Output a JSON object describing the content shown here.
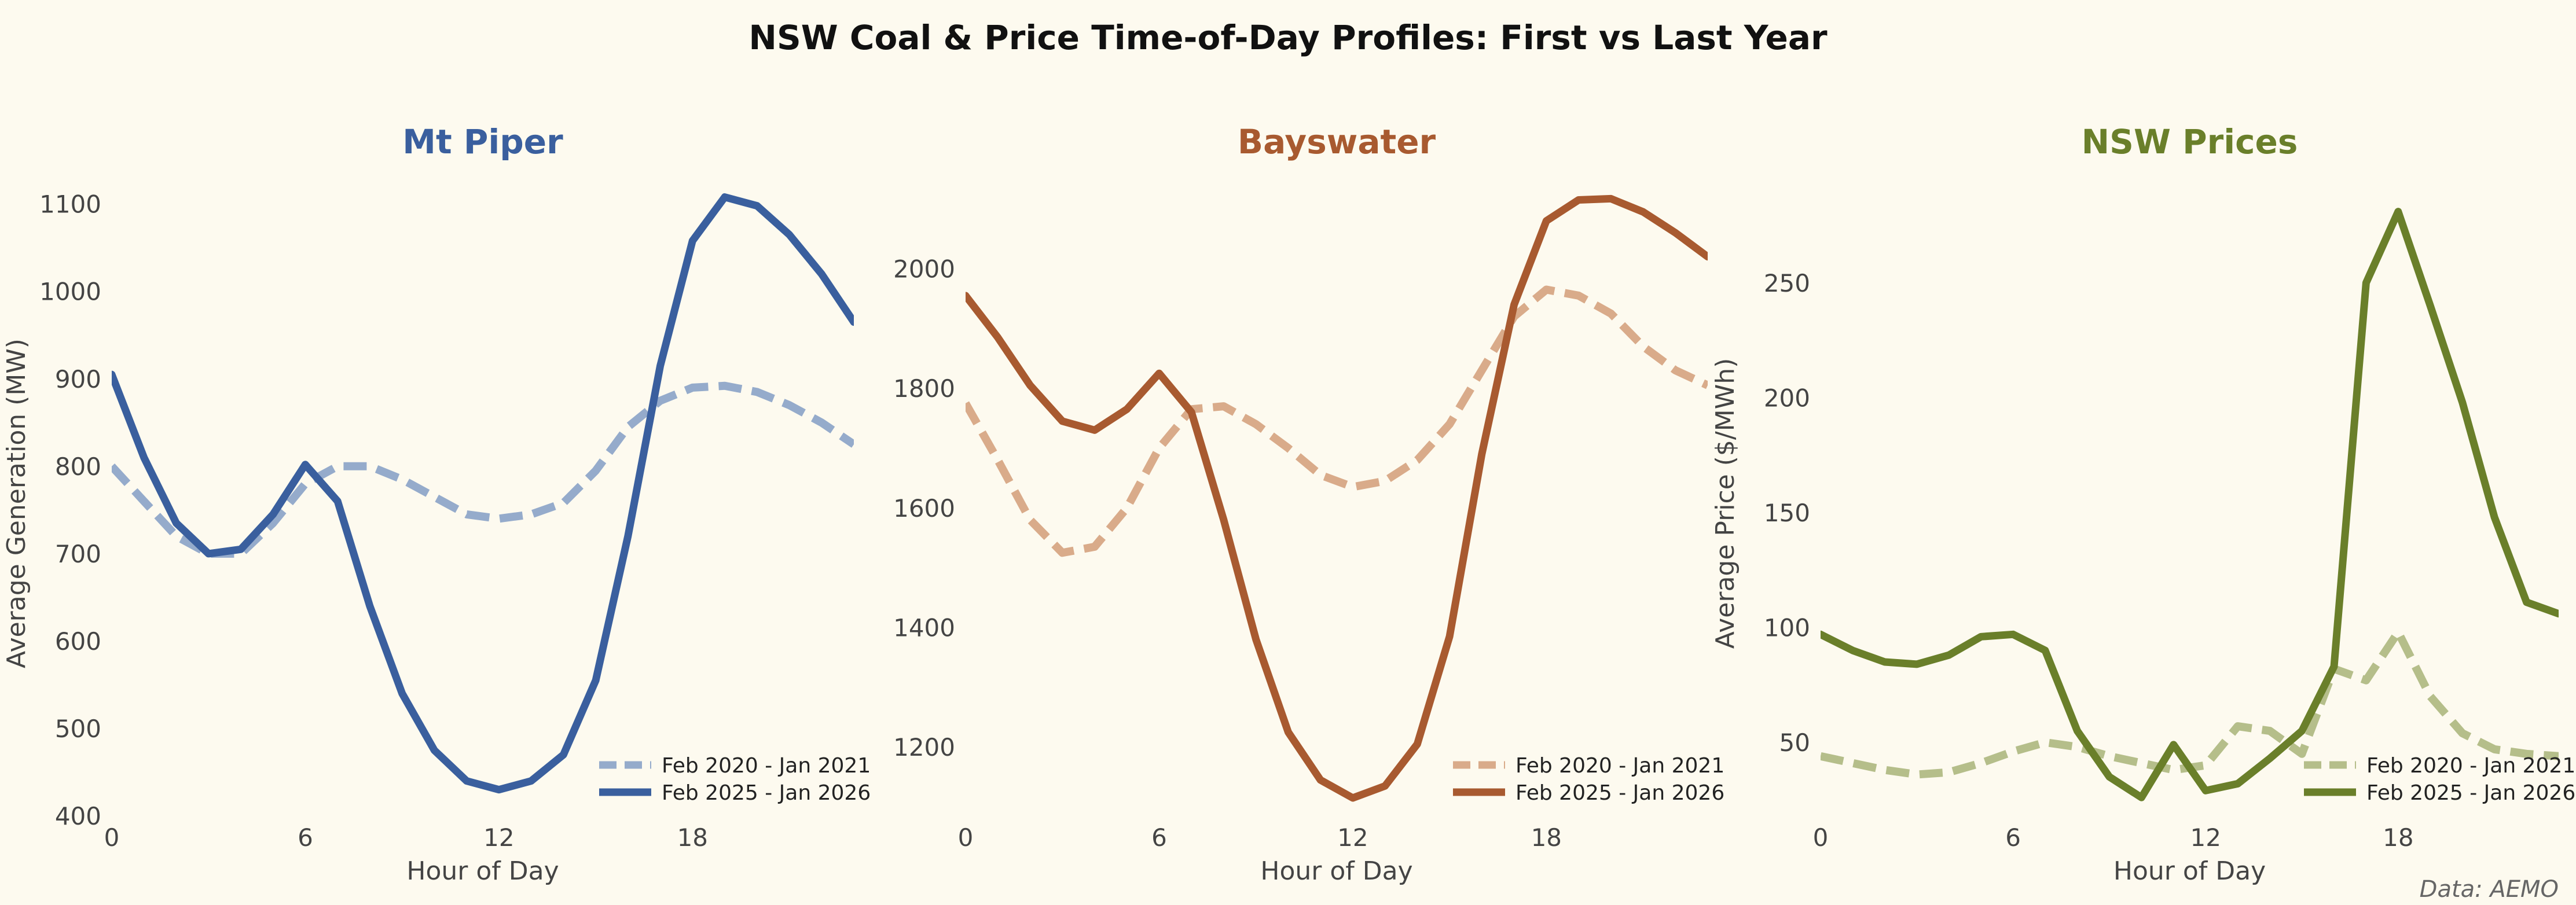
{
  "figure": {
    "title": "NSW Coal & Price Time-of-Day Profiles: First vs Last Year",
    "credit": "Data: AEMO",
    "background": "#FDFAEF"
  },
  "chart_data": [
    {
      "type": "line",
      "title": "Mt Piper",
      "title_color": "#3A5F9E",
      "xlabel": "Hour of Day",
      "ylabel": "Average Generation (MW)",
      "xlim": [
        0,
        23
      ],
      "ylim": [
        400,
        1115
      ],
      "xticks": [
        0,
        6,
        12,
        18
      ],
      "yticks": [
        400,
        500,
        600,
        700,
        800,
        900,
        1000,
        1100
      ],
      "legend": "lower-right",
      "x": [
        0,
        1,
        2,
        3,
        4,
        5,
        6,
        7,
        8,
        9,
        10,
        11,
        12,
        13,
        14,
        15,
        16,
        17,
        18,
        19,
        20,
        21,
        22,
        23
      ],
      "series": [
        {
          "name": "Feb 2020 - Jan 2021",
          "style": "dashed",
          "color": "#95ABCB",
          "values": [
            800,
            760,
            720,
            700,
            700,
            735,
            780,
            800,
            800,
            785,
            765,
            745,
            740,
            745,
            758,
            795,
            845,
            875,
            890,
            892,
            885,
            870,
            850,
            825
          ]
        },
        {
          "name": "Feb 2025 - Jan 2026",
          "style": "solid",
          "color": "#3A5F9E",
          "values": [
            905,
            810,
            735,
            700,
            705,
            745,
            802,
            760,
            640,
            540,
            475,
            440,
            430,
            440,
            470,
            555,
            720,
            915,
            1058,
            1108,
            1098,
            1065,
            1020,
            965
          ]
        }
      ]
    },
    {
      "type": "line",
      "title": "Bayswater",
      "title_color": "#A85A30",
      "xlabel": "Hour of Day",
      "ylabel": "",
      "xlim": [
        0,
        23
      ],
      "ylim": [
        1085,
        2130
      ],
      "xticks": [
        0,
        6,
        12,
        18
      ],
      "yticks": [
        1200,
        1400,
        1600,
        1800,
        2000
      ],
      "legend": "lower-right",
      "x": [
        0,
        1,
        2,
        3,
        4,
        5,
        6,
        7,
        8,
        9,
        10,
        11,
        12,
        13,
        14,
        15,
        16,
        17,
        18,
        19,
        20,
        21,
        22,
        23
      ],
      "series": [
        {
          "name": "Feb 2020 - Jan 2021",
          "style": "dashed",
          "color": "#D9AB8A",
          "values": [
            1775,
            1680,
            1580,
            1525,
            1535,
            1600,
            1700,
            1765,
            1770,
            1740,
            1700,
            1655,
            1635,
            1645,
            1680,
            1740,
            1830,
            1920,
            1965,
            1955,
            1925,
            1870,
            1830,
            1805
          ]
        },
        {
          "name": "Feb 2025 - Jan 2026",
          "style": "solid",
          "color": "#A85A30",
          "values": [
            1955,
            1885,
            1805,
            1745,
            1730,
            1765,
            1825,
            1760,
            1580,
            1380,
            1225,
            1145,
            1115,
            1135,
            1205,
            1385,
            1690,
            1940,
            2080,
            2115,
            2117,
            2095,
            2060,
            2020
          ]
        }
      ]
    },
    {
      "type": "line",
      "title": "NSW Prices",
      "title_color": "#6A7F2A",
      "xlabel": "Hour of Day",
      "ylabel": "Average Price ($/MWh)",
      "xlim": [
        0,
        23
      ],
      "ylim": [
        18,
        290
      ],
      "xticks": [
        0,
        6,
        12,
        18
      ],
      "yticks": [
        50,
        100,
        150,
        200,
        250
      ],
      "legend": "lower-right",
      "x": [
        0,
        1,
        2,
        3,
        4,
        5,
        6,
        7,
        8,
        9,
        10,
        11,
        12,
        13,
        14,
        15,
        16,
        17,
        18,
        19,
        20,
        21,
        22,
        23
      ],
      "series": [
        {
          "name": "Feb 2020 - Jan 2021",
          "style": "dashed",
          "color": "#B5BE8A",
          "values": [
            44,
            41,
            38,
            36,
            37,
            41,
            46,
            50,
            48,
            44,
            41,
            38,
            40,
            57,
            55,
            45,
            82,
            77,
            98,
            70,
            54,
            47,
            45,
            44
          ]
        },
        {
          "name": "Feb 2025 - Jan 2026",
          "style": "solid",
          "color": "#6A7F2A",
          "values": [
            97,
            90,
            85,
            84,
            88,
            96,
            97,
            90,
            55,
            35,
            26,
            49,
            29,
            32,
            43,
            55,
            83,
            250,
            281,
            240,
            198,
            148,
            111,
            106
          ]
        }
      ]
    }
  ]
}
